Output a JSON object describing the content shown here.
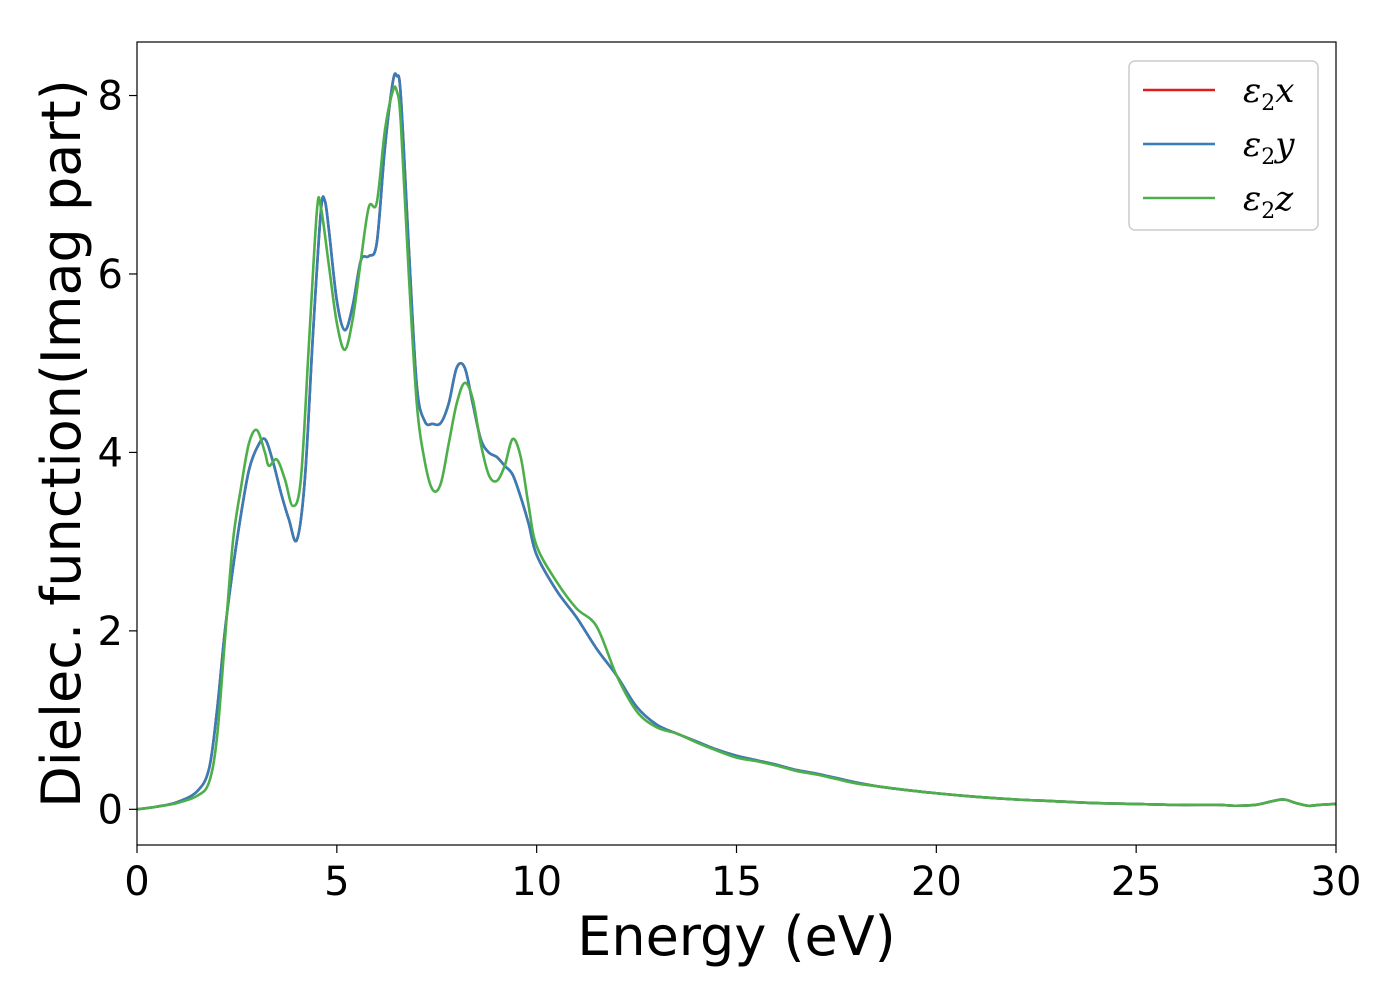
{
  "chart_data": {
    "type": "line",
    "xlabel": "Energy (eV)",
    "ylabel": "Dielec. function(Imag part)",
    "xlim": [
      0,
      30
    ],
    "ylim": [
      -0.4,
      8.6
    ],
    "xticks": [
      0,
      5,
      10,
      15,
      20,
      25,
      30
    ],
    "yticks": [
      0,
      2,
      4,
      6,
      8
    ],
    "grid": false,
    "legend_position": "top-right",
    "series": [
      {
        "name": "ε2x",
        "legend": {
          "base": "ε",
          "sub": "2",
          "axis": "x"
        },
        "color": "#e41a1c",
        "x": [
          0,
          0.5,
          1,
          1.5,
          1.8,
          2,
          2.2,
          2.4,
          2.6,
          2.8,
          3,
          3.2,
          3.4,
          3.6,
          3.8,
          4,
          4.2,
          4.4,
          4.6,
          4.7,
          4.8,
          5,
          5.2,
          5.4,
          5.6,
          5.8,
          6,
          6.2,
          6.4,
          6.5,
          6.6,
          6.8,
          7,
          7.2,
          7.4,
          7.6,
          7.8,
          8,
          8.2,
          8.4,
          8.6,
          8.8,
          9,
          9.2,
          9.4,
          9.6,
          9.8,
          10,
          10.5,
          11,
          11.5,
          12,
          12.5,
          13,
          13.5,
          14,
          14.5,
          15,
          15.5,
          16,
          16.5,
          17,
          17.5,
          18,
          18.5,
          19,
          20,
          21,
          22,
          23,
          24,
          25,
          26,
          27,
          27.5,
          28,
          28.4,
          28.7,
          29,
          29.3,
          29.6,
          30
        ],
        "y": [
          0,
          0.03,
          0.08,
          0.2,
          0.45,
          1.1,
          2.0,
          2.7,
          3.3,
          3.8,
          4.05,
          4.15,
          3.9,
          3.55,
          3.25,
          3.02,
          3.7,
          5.3,
          6.7,
          6.82,
          6.5,
          5.7,
          5.37,
          5.65,
          6.15,
          6.2,
          6.35,
          7.4,
          8.15,
          8.22,
          8.0,
          6.3,
          4.75,
          4.35,
          4.32,
          4.33,
          4.55,
          4.95,
          4.95,
          4.55,
          4.15,
          4.0,
          3.95,
          3.85,
          3.75,
          3.5,
          3.2,
          2.85,
          2.45,
          2.15,
          1.8,
          1.5,
          1.15,
          0.95,
          0.85,
          0.76,
          0.67,
          0.6,
          0.55,
          0.5,
          0.44,
          0.4,
          0.35,
          0.3,
          0.26,
          0.23,
          0.18,
          0.14,
          0.11,
          0.09,
          0.07,
          0.06,
          0.05,
          0.05,
          0.04,
          0.05,
          0.09,
          0.11,
          0.07,
          0.04,
          0.05,
          0.06
        ]
      },
      {
        "name": "ε2y",
        "legend": {
          "base": "ε",
          "sub": "2",
          "axis": "y"
        },
        "color": "#377eb8",
        "x": [
          0,
          0.5,
          1,
          1.5,
          1.8,
          2,
          2.2,
          2.4,
          2.6,
          2.8,
          3,
          3.2,
          3.4,
          3.6,
          3.8,
          4,
          4.2,
          4.4,
          4.6,
          4.7,
          4.8,
          5,
          5.2,
          5.4,
          5.6,
          5.8,
          6,
          6.2,
          6.4,
          6.5,
          6.6,
          6.8,
          7,
          7.2,
          7.4,
          7.6,
          7.8,
          8,
          8.2,
          8.4,
          8.6,
          8.8,
          9,
          9.2,
          9.4,
          9.6,
          9.8,
          10,
          10.5,
          11,
          11.5,
          12,
          12.5,
          13,
          13.5,
          14,
          14.5,
          15,
          15.5,
          16,
          16.5,
          17,
          17.5,
          18,
          18.5,
          19,
          20,
          21,
          22,
          23,
          24,
          25,
          26,
          27,
          27.5,
          28,
          28.4,
          28.7,
          29,
          29.3,
          29.6,
          30
        ],
        "y": [
          0,
          0.03,
          0.08,
          0.2,
          0.45,
          1.1,
          2.0,
          2.7,
          3.3,
          3.8,
          4.05,
          4.15,
          3.9,
          3.55,
          3.25,
          3.02,
          3.7,
          5.3,
          6.7,
          6.82,
          6.5,
          5.7,
          5.37,
          5.65,
          6.15,
          6.2,
          6.35,
          7.4,
          8.15,
          8.22,
          8.0,
          6.3,
          4.75,
          4.35,
          4.32,
          4.33,
          4.55,
          4.95,
          4.95,
          4.55,
          4.15,
          4.0,
          3.95,
          3.85,
          3.75,
          3.5,
          3.2,
          2.85,
          2.45,
          2.15,
          1.8,
          1.5,
          1.15,
          0.95,
          0.85,
          0.76,
          0.67,
          0.6,
          0.55,
          0.5,
          0.44,
          0.4,
          0.35,
          0.3,
          0.26,
          0.23,
          0.18,
          0.14,
          0.11,
          0.09,
          0.07,
          0.06,
          0.05,
          0.05,
          0.04,
          0.05,
          0.09,
          0.11,
          0.07,
          0.04,
          0.05,
          0.06
        ]
      },
      {
        "name": "ε2z",
        "legend": {
          "base": "ε",
          "sub": "2",
          "axis": "z"
        },
        "color": "#4daf4a",
        "x": [
          0,
          0.5,
          1,
          1.5,
          1.8,
          2,
          2.2,
          2.4,
          2.6,
          2.8,
          3,
          3.2,
          3.3,
          3.5,
          3.7,
          3.9,
          4.1,
          4.3,
          4.5,
          4.6,
          4.8,
          5,
          5.2,
          5.4,
          5.6,
          5.8,
          6,
          6.2,
          6.4,
          6.5,
          6.6,
          6.8,
          7,
          7.2,
          7.4,
          7.6,
          7.8,
          8,
          8.2,
          8.4,
          8.6,
          8.8,
          9,
          9.2,
          9.4,
          9.6,
          9.8,
          10,
          10.5,
          11,
          11.5,
          12,
          12.5,
          13,
          13.5,
          14,
          14.5,
          15,
          15.5,
          16,
          16.5,
          17,
          17.5,
          18,
          18.5,
          19,
          20,
          21,
          22,
          23,
          24,
          25,
          26,
          27,
          27.5,
          28,
          28.4,
          28.7,
          29,
          29.3,
          29.6,
          30
        ],
        "y": [
          0,
          0.03,
          0.07,
          0.15,
          0.3,
          0.8,
          1.9,
          3.0,
          3.6,
          4.1,
          4.25,
          4.0,
          3.85,
          3.92,
          3.7,
          3.4,
          3.7,
          5.2,
          6.7,
          6.75,
          6.1,
          5.45,
          5.15,
          5.5,
          6.15,
          6.75,
          6.8,
          7.6,
          8.05,
          8.05,
          7.7,
          6.0,
          4.55,
          3.9,
          3.58,
          3.65,
          4.1,
          4.55,
          4.78,
          4.6,
          4.1,
          3.75,
          3.68,
          3.85,
          4.15,
          3.95,
          3.4,
          2.95,
          2.55,
          2.25,
          2.05,
          1.5,
          1.1,
          0.92,
          0.85,
          0.75,
          0.66,
          0.58,
          0.54,
          0.49,
          0.43,
          0.39,
          0.34,
          0.29,
          0.26,
          0.23,
          0.18,
          0.14,
          0.11,
          0.09,
          0.07,
          0.06,
          0.05,
          0.05,
          0.04,
          0.05,
          0.09,
          0.11,
          0.07,
          0.04,
          0.05,
          0.06
        ]
      }
    ]
  }
}
